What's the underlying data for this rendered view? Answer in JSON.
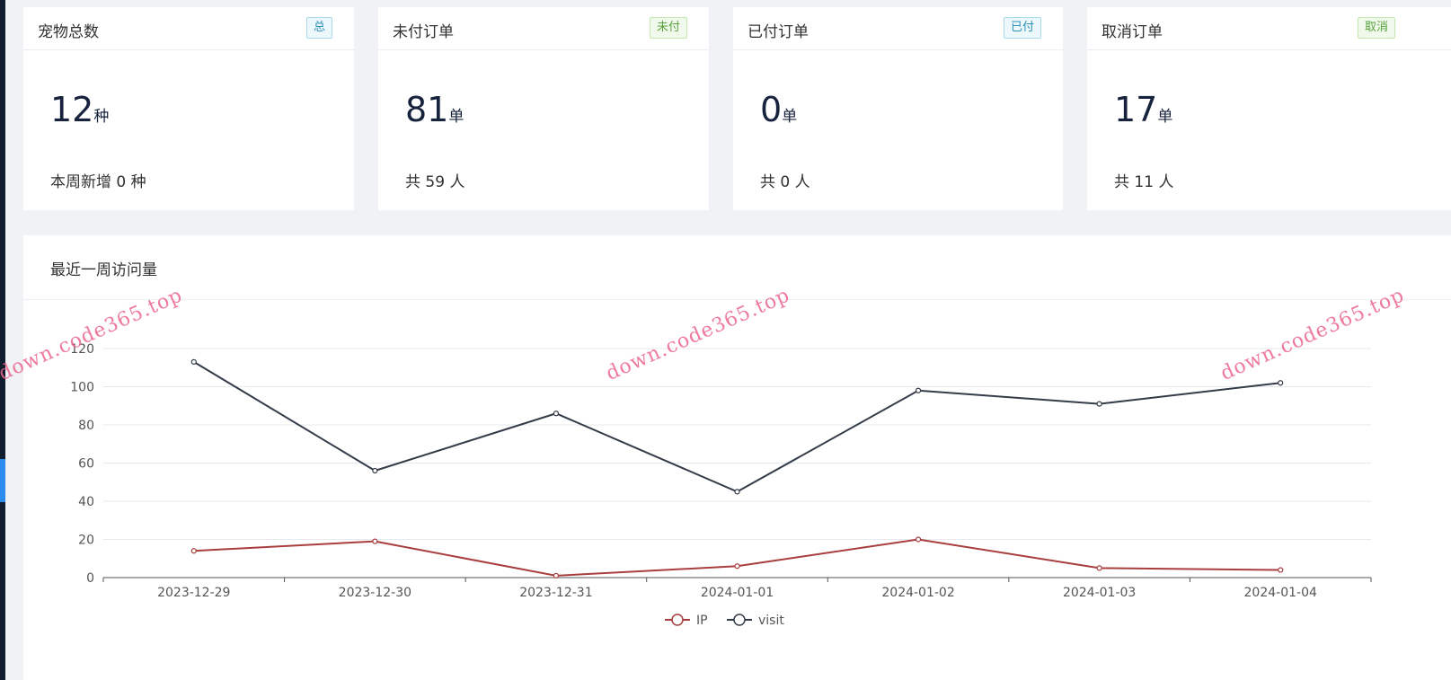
{
  "cards": [
    {
      "title": "宠物总数",
      "tag": "总",
      "value": "12",
      "unit": "种",
      "sub": "本周新增 0 种"
    },
    {
      "title": "未付订单",
      "tag": "未付",
      "value": "81",
      "unit": "单",
      "sub": "共 59 人"
    },
    {
      "title": "已付订单",
      "tag": "已付",
      "value": "0",
      "unit": "单",
      "sub": "共 0 人"
    },
    {
      "title": "取消订单",
      "tag": "取消",
      "value": "17",
      "unit": "单",
      "sub": "共 11 人"
    }
  ],
  "chart_title": "最近一周访问量",
  "watermark": "down.code365.top",
  "colors": {
    "ip": "#a83e3e",
    "visit": "#333c48",
    "tag_blue": "#2f8fb5",
    "tag_green": "#58a23b"
  },
  "chart_data": {
    "type": "line",
    "title": "最近一周访问量",
    "categories": [
      "2023-12-29",
      "2023-12-30",
      "2023-12-31",
      "2024-01-01",
      "2024-01-02",
      "2024-01-03",
      "2024-01-04"
    ],
    "series": [
      {
        "name": "IP",
        "values": [
          14,
          19,
          1,
          6,
          20,
          5,
          4
        ]
      },
      {
        "name": "visit",
        "values": [
          113,
          56,
          86,
          45,
          98,
          91,
          102
        ]
      }
    ],
    "ylim": [
      0,
      120
    ],
    "yticks": [
      0,
      20,
      40,
      60,
      80,
      100,
      120
    ],
    "grid": true,
    "legend": "bottom-center"
  }
}
